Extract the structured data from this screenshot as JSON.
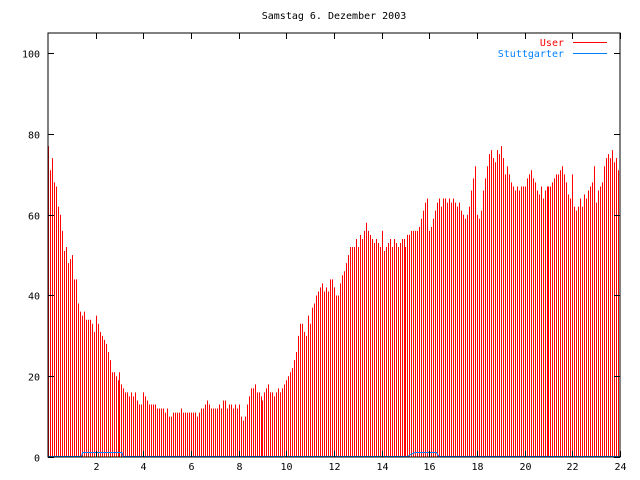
{
  "chart_data": {
    "type": "bar",
    "title": "Samstag 6. Dezember 2003",
    "xlabel": "",
    "ylabel": "",
    "xlim": [
      0,
      24
    ],
    "ylim": [
      0,
      105
    ],
    "x_step_hours": 0.0833333,
    "xticks": [
      2,
      4,
      6,
      8,
      10,
      12,
      14,
      16,
      18,
      20,
      22,
      24
    ],
    "yticks": [
      0,
      20,
      40,
      60,
      80,
      100
    ],
    "legend_position": "top-right",
    "series": [
      {
        "name": "User",
        "color": "#ff0000",
        "style": "impulses",
        "values": [
          77,
          71,
          74,
          68,
          67,
          62,
          60,
          56,
          51,
          52,
          48,
          49,
          50,
          44,
          44,
          38,
          36,
          35,
          36,
          34,
          34,
          34,
          33,
          31,
          35,
          33,
          31,
          30,
          29,
          28,
          26,
          24,
          21,
          21,
          20,
          19,
          21,
          18,
          17,
          16,
          16,
          15,
          16,
          15,
          16,
          14,
          13,
          13,
          16,
          15,
          14,
          13,
          13,
          13,
          13,
          12,
          12,
          12,
          12,
          11,
          12,
          10,
          10,
          11,
          11,
          11,
          11,
          12,
          11,
          11,
          11,
          11,
          11,
          11,
          11,
          10,
          11,
          12,
          12,
          13,
          14,
          13,
          12,
          12,
          12,
          12,
          13,
          12,
          14,
          14,
          12,
          13,
          13,
          12,
          13,
          12,
          13,
          10,
          9,
          10,
          13,
          15,
          17,
          17,
          18,
          16,
          16,
          15,
          14,
          16,
          17,
          18,
          16,
          16,
          15,
          16,
          17,
          16,
          17,
          18,
          19,
          20,
          21,
          22,
          24,
          26,
          30,
          33,
          33,
          31,
          30,
          35,
          33,
          37,
          38,
          40,
          41,
          42,
          43,
          41,
          42,
          41,
          44,
          44,
          42,
          40,
          40,
          43,
          45,
          46,
          48,
          50,
          52,
          52,
          52,
          54,
          52,
          55,
          54,
          56,
          58,
          56,
          55,
          54,
          53,
          54,
          53,
          52,
          56,
          51,
          52,
          53,
          54,
          52,
          54,
          53,
          52,
          53,
          54,
          54,
          52,
          55,
          55,
          56,
          56,
          56,
          56,
          57,
          59,
          61,
          63,
          64,
          56,
          57,
          59,
          61,
          63,
          64,
          62,
          64,
          64,
          63,
          64,
          63,
          64,
          63,
          62,
          63,
          61,
          60,
          59,
          60,
          62,
          66,
          69,
          72,
          60,
          59,
          61,
          66,
          69,
          72,
          75,
          76,
          74,
          73,
          76,
          75,
          77,
          74,
          70,
          72,
          70,
          68,
          67,
          66,
          67,
          66,
          67,
          67,
          67,
          69,
          70,
          71,
          69,
          68,
          66,
          65,
          67,
          64,
          66,
          67,
          67,
          67,
          68,
          69,
          70,
          70,
          71,
          72,
          70,
          68,
          65,
          64,
          70,
          62,
          61,
          62,
          64,
          62,
          65,
          64,
          66,
          67,
          68,
          72,
          63,
          66,
          67,
          68,
          72,
          74,
          75,
          74,
          76,
          73,
          74,
          71
        ]
      },
      {
        "name": "Stuttgarter",
        "color": "#0080ff",
        "style": "lines",
        "points": [
          [
            0,
            0
          ],
          [
            1.4,
            0
          ],
          [
            1.45,
            1
          ],
          [
            3.1,
            1
          ],
          [
            3.15,
            0
          ],
          [
            15.1,
            0
          ],
          [
            15.2,
            0.5
          ],
          [
            15.4,
            1
          ],
          [
            16.3,
            1
          ],
          [
            16.4,
            0
          ],
          [
            24,
            0
          ]
        ]
      }
    ]
  }
}
